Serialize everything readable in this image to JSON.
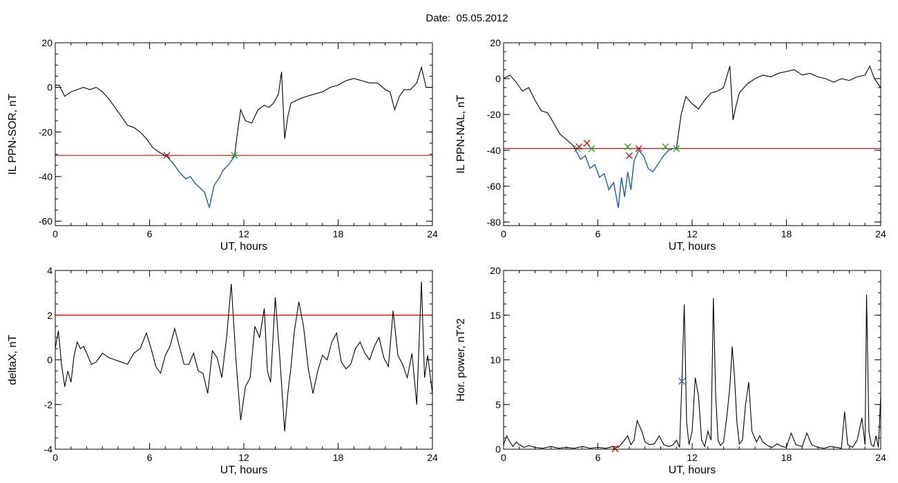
{
  "header": {
    "title": "Date:  05.05.2012"
  },
  "chart_data": [
    {
      "id": "ppn-sor",
      "type": "line",
      "xlabel": "UT, hours",
      "ylabel": "IL PPN-SOR, nT",
      "xlim": [
        0,
        24
      ],
      "ylim": [
        -62,
        20
      ],
      "xticks": [
        0,
        6,
        12,
        18,
        24
      ],
      "yticks": [
        -60,
        -40,
        -20,
        0,
        20
      ],
      "threshold": {
        "value": -30.5,
        "color": "#d00000"
      },
      "highlight_color": "#1f5fbf",
      "line_color": "#000000",
      "highlight_range": [
        7.1,
        11.4
      ],
      "series": [
        {
          "x": [
            0,
            0.25,
            0.6,
            1.0,
            1.4,
            1.8,
            2.2,
            2.6,
            3.0,
            3.4,
            3.8,
            4.2,
            4.6,
            5.0,
            5.4,
            5.8,
            6.2,
            6.6,
            7.1,
            7.5,
            7.9,
            8.3,
            8.6,
            8.9,
            9.2,
            9.5,
            9.8,
            10.1,
            10.4,
            10.7,
            11.0,
            11.4,
            11.6,
            11.8,
            12.1,
            12.5,
            12.9,
            13.3,
            13.6,
            13.9,
            14.2,
            14.4,
            14.6,
            14.8,
            15.0,
            15.3,
            15.6,
            16.0,
            16.5,
            17.0,
            17.5,
            18.0,
            18.5,
            19.0,
            19.5,
            20.0,
            20.5,
            21.0,
            21.3,
            21.6,
            21.9,
            22.2,
            22.6,
            23.0,
            23.3,
            23.6,
            24.0
          ],
          "y": [
            1,
            1,
            -4,
            -2,
            -1,
            0,
            -1,
            0,
            -2,
            -5,
            -9,
            -13,
            -17,
            -18,
            -20,
            -23,
            -27,
            -29,
            -31,
            -34,
            -38,
            -41,
            -40,
            -43,
            -45,
            -47,
            -54,
            -44,
            -41,
            -37,
            -35,
            -31,
            -20,
            -10,
            -15,
            -16,
            -10,
            -8,
            -9,
            -7,
            -3,
            7,
            -23,
            -13,
            -7,
            -6,
            -5,
            -4,
            -3,
            -2,
            0,
            1,
            3,
            4,
            3,
            2,
            2,
            -1,
            -2,
            -10,
            -4,
            -1,
            -1,
            2,
            9,
            0,
            0
          ]
        }
      ],
      "markers": [
        {
          "x": 7.1,
          "y": -30.5,
          "color": "#d00000"
        },
        {
          "x": 11.4,
          "y": -30.5,
          "color": "#22a022"
        }
      ]
    },
    {
      "id": "ppn-nal",
      "type": "line",
      "xlabel": "UT, hours",
      "ylabel": "IL PPN-NAL, nT",
      "xlim": [
        0,
        24
      ],
      "ylim": [
        -82,
        20
      ],
      "xticks": [
        0,
        6,
        12,
        18,
        24
      ],
      "yticks": [
        -80,
        -60,
        -40,
        -20,
        0,
        20
      ],
      "threshold": {
        "value": -39,
        "color": "#d00000"
      },
      "highlight_color": "#1f5fbf",
      "line_color": "#000000",
      "highlight_range": [
        4.6,
        11.0
      ],
      "series": [
        {
          "x": [
            0,
            0.4,
            0.8,
            1.2,
            1.6,
            2.0,
            2.4,
            2.8,
            3.2,
            3.6,
            4.0,
            4.4,
            4.6,
            4.9,
            5.2,
            5.5,
            5.8,
            6.1,
            6.4,
            6.7,
            7.0,
            7.3,
            7.5,
            7.7,
            7.9,
            8.1,
            8.3,
            8.6,
            8.9,
            9.2,
            9.5,
            9.8,
            10.1,
            10.5,
            10.8,
            11.0,
            11.3,
            11.6,
            12.0,
            12.4,
            12.8,
            13.2,
            13.6,
            14.0,
            14.4,
            14.6,
            14.8,
            15.0,
            15.5,
            16.0,
            16.5,
            17.0,
            17.5,
            18.0,
            18.5,
            19.0,
            19.5,
            20.0,
            20.5,
            21.0,
            21.5,
            22.0,
            22.5,
            23.0,
            23.3,
            23.6,
            24.0
          ],
          "y": [
            0,
            2,
            -2,
            -7,
            -5,
            -12,
            -18,
            -19,
            -25,
            -31,
            -34,
            -37,
            -40,
            -45,
            -43,
            -50,
            -48,
            -55,
            -53,
            -62,
            -58,
            -72,
            -55,
            -66,
            -52,
            -62,
            -46,
            -40,
            -43,
            -50,
            -52,
            -48,
            -44,
            -40,
            -39,
            -39,
            -20,
            -10,
            -14,
            -17,
            -12,
            -8,
            -7,
            -5,
            7,
            -23,
            -15,
            -8,
            -3,
            0,
            2,
            1,
            3,
            4,
            5,
            2,
            3,
            1,
            0,
            -2,
            0,
            -1,
            1,
            2,
            7,
            0,
            -5
          ]
        }
      ],
      "markers": [
        {
          "x": 4.7,
          "y": -39,
          "color": "#22a022"
        },
        {
          "x": 4.8,
          "y": -38,
          "color": "#d00000"
        },
        {
          "x": 5.3,
          "y": -36,
          "color": "#d00000"
        },
        {
          "x": 5.6,
          "y": -39,
          "color": "#22a022"
        },
        {
          "x": 7.9,
          "y": -38,
          "color": "#22a022"
        },
        {
          "x": 8.0,
          "y": -43,
          "color": "#d00000"
        },
        {
          "x": 8.6,
          "y": -39,
          "color": "#d00000"
        },
        {
          "x": 10.3,
          "y": -38,
          "color": "#22a022"
        },
        {
          "x": 11.0,
          "y": -39,
          "color": "#22a022"
        }
      ]
    },
    {
      "id": "deltax",
      "type": "line",
      "xlabel": "UT, hours",
      "ylabel": "deltaX, nT",
      "xlim": [
        0,
        24
      ],
      "ylim": [
        -4,
        4
      ],
      "xticks": [
        0,
        6,
        12,
        18,
        24
      ],
      "yticks": [
        -4,
        -2,
        0,
        2,
        4
      ],
      "threshold": {
        "value": 2,
        "color": "#d00000"
      },
      "line_color": "#000000",
      "series": [
        {
          "x": [
            0,
            0.2,
            0.4,
            0.6,
            0.8,
            1.0,
            1.2,
            1.4,
            1.6,
            1.8,
            2.0,
            2.3,
            2.6,
            3.0,
            3.4,
            3.8,
            4.2,
            4.6,
            5.0,
            5.4,
            5.8,
            6.1,
            6.4,
            6.7,
            7.0,
            7.3,
            7.6,
            7.9,
            8.2,
            8.5,
            8.8,
            9.1,
            9.4,
            9.7,
            10.0,
            10.3,
            10.6,
            10.9,
            11.2,
            11.5,
            11.8,
            12.1,
            12.4,
            12.7,
            13.0,
            13.3,
            13.5,
            13.7,
            14.0,
            14.3,
            14.6,
            14.8,
            15.0,
            15.2,
            15.5,
            15.8,
            16.1,
            16.4,
            16.7,
            17.0,
            17.3,
            17.6,
            17.9,
            18.2,
            18.5,
            18.8,
            19.1,
            19.4,
            19.7,
            20.0,
            20.3,
            20.6,
            20.9,
            21.2,
            21.5,
            21.8,
            22.1,
            22.4,
            22.7,
            23.0,
            23.3,
            23.5,
            23.7,
            24.0
          ],
          "y": [
            0.5,
            1.3,
            -0.2,
            -1.2,
            -0.5,
            -1.0,
            0.2,
            0.8,
            0.5,
            0.6,
            0.3,
            -0.2,
            -0.1,
            0.3,
            0.1,
            0.0,
            -0.1,
            -0.2,
            0.3,
            0.5,
            1.2,
            0.5,
            -0.3,
            -0.6,
            0.2,
            0.6,
            1.4,
            0.6,
            -0.2,
            -0.2,
            0.3,
            -0.5,
            -0.6,
            -1.5,
            0.4,
            0.1,
            -0.8,
            1.0,
            3.4,
            0.0,
            -2.7,
            -1.2,
            -0.8,
            1.5,
            1.0,
            2.3,
            -0.5,
            -1.0,
            2.8,
            0.0,
            -3.2,
            -1.5,
            -0.3,
            1.2,
            2.6,
            1.5,
            -0.4,
            -1.5,
            -0.5,
            0.2,
            0.0,
            0.8,
            1.2,
            -0.1,
            -0.4,
            -0.2,
            0.5,
            0.8,
            0.3,
            0.0,
            0.6,
            1.0,
            0.1,
            -0.3,
            2.2,
            0.2,
            -0.2,
            -0.8,
            0.3,
            -2.0,
            3.5,
            -0.8,
            0.2,
            -1.5
          ]
        }
      ]
    },
    {
      "id": "hor-power",
      "type": "line",
      "xlabel": "UT, hours",
      "ylabel": "Hor. power, nT^2",
      "xlim": [
        0,
        24
      ],
      "ylim": [
        0,
        20
      ],
      "xticks": [
        0,
        6,
        12,
        18,
        24
      ],
      "yticks": [
        0,
        5,
        10,
        15,
        20
      ],
      "line_color": "#000000",
      "series": [
        {
          "x": [
            0,
            0.2,
            0.4,
            0.6,
            0.8,
            1.0,
            1.3,
            1.6,
            2.0,
            2.5,
            3.0,
            3.5,
            4.0,
            4.5,
            5.0,
            5.5,
            6.0,
            6.5,
            7.0,
            7.3,
            7.6,
            7.9,
            8.1,
            8.3,
            8.5,
            8.8,
            9.0,
            9.3,
            9.6,
            9.9,
            10.2,
            10.5,
            10.8,
            11.0,
            11.2,
            11.35,
            11.5,
            11.65,
            11.8,
            12.0,
            12.2,
            12.4,
            12.6,
            12.8,
            13.0,
            13.2,
            13.35,
            13.5,
            13.65,
            13.8,
            14.0,
            14.2,
            14.4,
            14.55,
            14.7,
            14.85,
            15.0,
            15.2,
            15.4,
            15.6,
            15.8,
            16.0,
            16.1,
            16.3,
            16.5,
            16.8,
            17.1,
            17.4,
            17.7,
            18.0,
            18.3,
            18.6,
            19.0,
            19.3,
            19.6,
            20.0,
            20.4,
            20.8,
            21.2,
            21.5,
            21.7,
            21.9,
            22.2,
            22.5,
            22.8,
            23.0,
            23.1,
            23.25,
            23.4,
            23.55,
            23.7,
            23.85,
            24.0
          ],
          "y": [
            0.5,
            1.5,
            0.8,
            0.3,
            0.8,
            0.5,
            0.2,
            0.4,
            0.2,
            0.1,
            0.3,
            0.1,
            0.2,
            0.1,
            0.3,
            0.1,
            0.2,
            0.1,
            0.3,
            0.2,
            0.8,
            1.5,
            0.5,
            1.0,
            3.2,
            2.0,
            0.8,
            0.5,
            0.6,
            1.5,
            0.5,
            0.3,
            0.5,
            1.0,
            0.2,
            7.6,
            16.2,
            3.0,
            0.5,
            2.0,
            8.0,
            6.0,
            1.0,
            0.3,
            2.0,
            1.0,
            16.9,
            6.0,
            1.0,
            0.4,
            0.8,
            3.5,
            7.0,
            11.5,
            8.0,
            3.0,
            0.6,
            1.0,
            5.0,
            7.5,
            2.0,
            1.2,
            0.8,
            1.5,
            0.8,
            0.4,
            0.2,
            0.6,
            0.3,
            0.2,
            1.8,
            0.5,
            0.3,
            1.8,
            0.5,
            0.2,
            0.1,
            0.3,
            0.2,
            0.1,
            4.2,
            0.5,
            0.2,
            1.0,
            3.5,
            0.5,
            17.3,
            2.0,
            0.5,
            0.3,
            1.5,
            0.2,
            6.0
          ]
        }
      ],
      "markers": [
        {
          "x": 11.35,
          "y": 7.6,
          "color": "#1f5fbf"
        },
        {
          "x": 7.1,
          "y": 0.05,
          "color": "#d00000"
        }
      ]
    }
  ]
}
